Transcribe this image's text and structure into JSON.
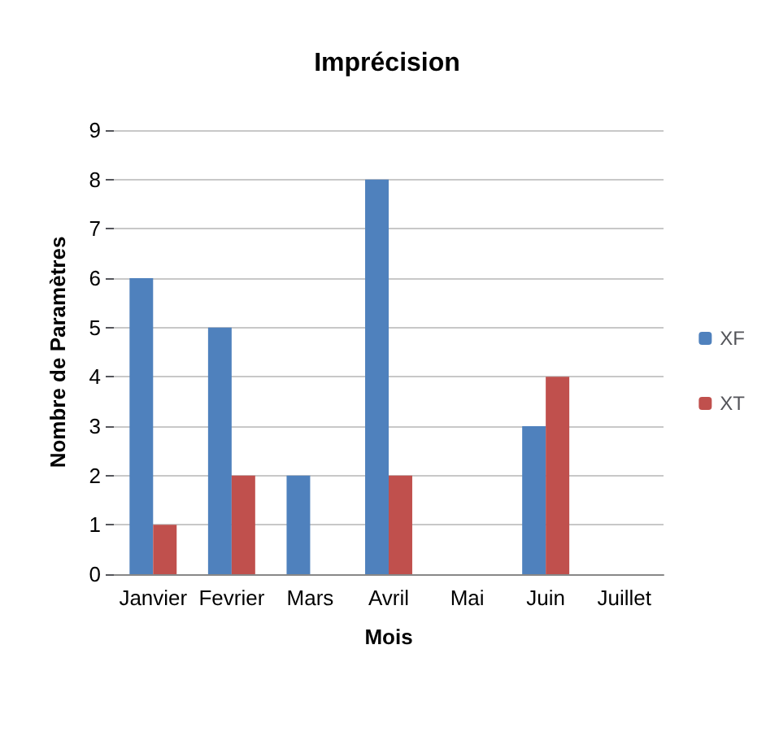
{
  "chart_data": {
    "type": "bar",
    "title": "Imprécision",
    "xlabel": "Mois",
    "ylabel": "Nombre de Paramètres",
    "categories": [
      "Janvier",
      "Fevrier",
      "Mars",
      "Avril",
      "Mai",
      "Juin",
      "Juillet"
    ],
    "series": [
      {
        "name": "XF",
        "color": "#4f81bd",
        "values": [
          6,
          5,
          2,
          8,
          0,
          3,
          0
        ]
      },
      {
        "name": "XT",
        "color": "#c0504d",
        "values": [
          1,
          2,
          0,
          2,
          0,
          4,
          0
        ]
      }
    ],
    "ylim": [
      0,
      9
    ],
    "yticks": [
      0,
      1,
      2,
      3,
      4,
      5,
      6,
      7,
      8,
      9
    ],
    "grid": "y",
    "legend": "right"
  }
}
